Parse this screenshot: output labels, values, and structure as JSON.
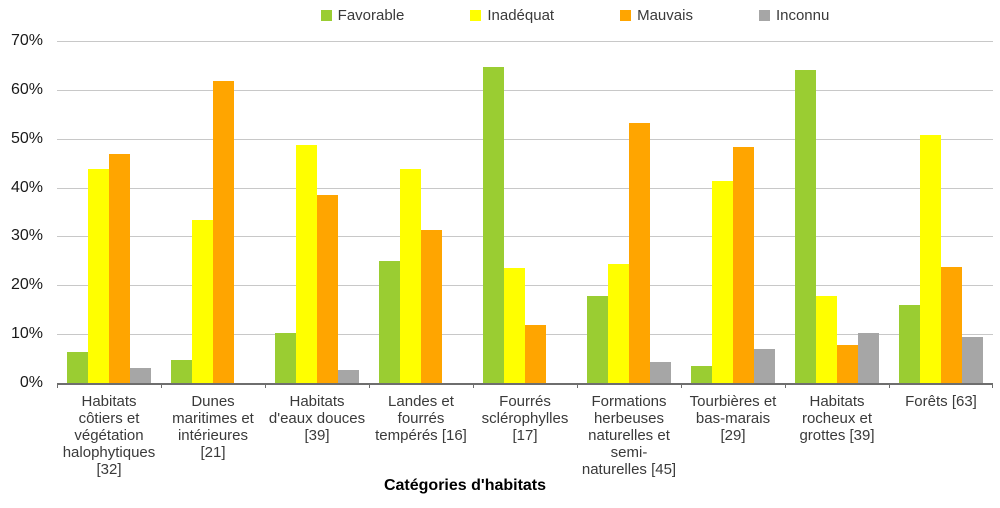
{
  "legend": {
    "position": "top",
    "items": [
      {
        "label": "Favorable",
        "color": "#9ACD32"
      },
      {
        "label": "Inadéquat",
        "color": "#FFFF00"
      },
      {
        "label": "Mauvais",
        "color": "#FFA500"
      },
      {
        "label": "Inconnu",
        "color": "#A6A6A6"
      }
    ]
  },
  "colors": {
    "gridline": "#C8C8C8",
    "axis": "#6E6E6E",
    "tick_text": "#1A1A1A",
    "label_text": "#3A3A3A"
  },
  "chart_data": {
    "type": "bar",
    "title": "",
    "xlabel": "Catégories d'habitats",
    "ylabel": "",
    "ylim": [
      0,
      70
    ],
    "ytick_step": 10,
    "y_ticks": [
      "0%",
      "10%",
      "20%",
      "30%",
      "40%",
      "50%",
      "60%",
      "70%"
    ],
    "grid": true,
    "legend_position": "top",
    "categories": [
      "Habitats côtiers et végétation halophytiques [32]",
      "Dunes maritimes et intérieures [21]",
      "Habitats d'eaux douces [39]",
      "Landes et fourrés tempérés [16]",
      "Fourrés sclérophylles [17]",
      "Formations herbeuses naturelles et semi-naturelles [45]",
      "Tourbières et bas-marais [29]",
      "Habitats rocheux et grottes [39]",
      "Forêts [63]"
    ],
    "series": [
      {
        "name": "Favorable",
        "color": "#9ACD32",
        "values": [
          6.3,
          4.8,
          10.3,
          25.0,
          64.7,
          17.8,
          3.4,
          64.1,
          15.9
        ]
      },
      {
        "name": "Inadéquat",
        "color": "#FFFF00",
        "values": [
          43.8,
          33.3,
          48.7,
          43.8,
          23.5,
          24.4,
          41.4,
          17.9,
          50.8
        ]
      },
      {
        "name": "Mauvais",
        "color": "#FFA500",
        "values": [
          46.9,
          61.9,
          38.5,
          31.3,
          11.8,
          53.3,
          48.3,
          7.7,
          23.8
        ]
      },
      {
        "name": "Inconnu",
        "color": "#A6A6A6",
        "values": [
          3.1,
          0.0,
          2.6,
          0.0,
          0.0,
          4.4,
          6.9,
          10.3,
          9.5
        ]
      }
    ]
  }
}
